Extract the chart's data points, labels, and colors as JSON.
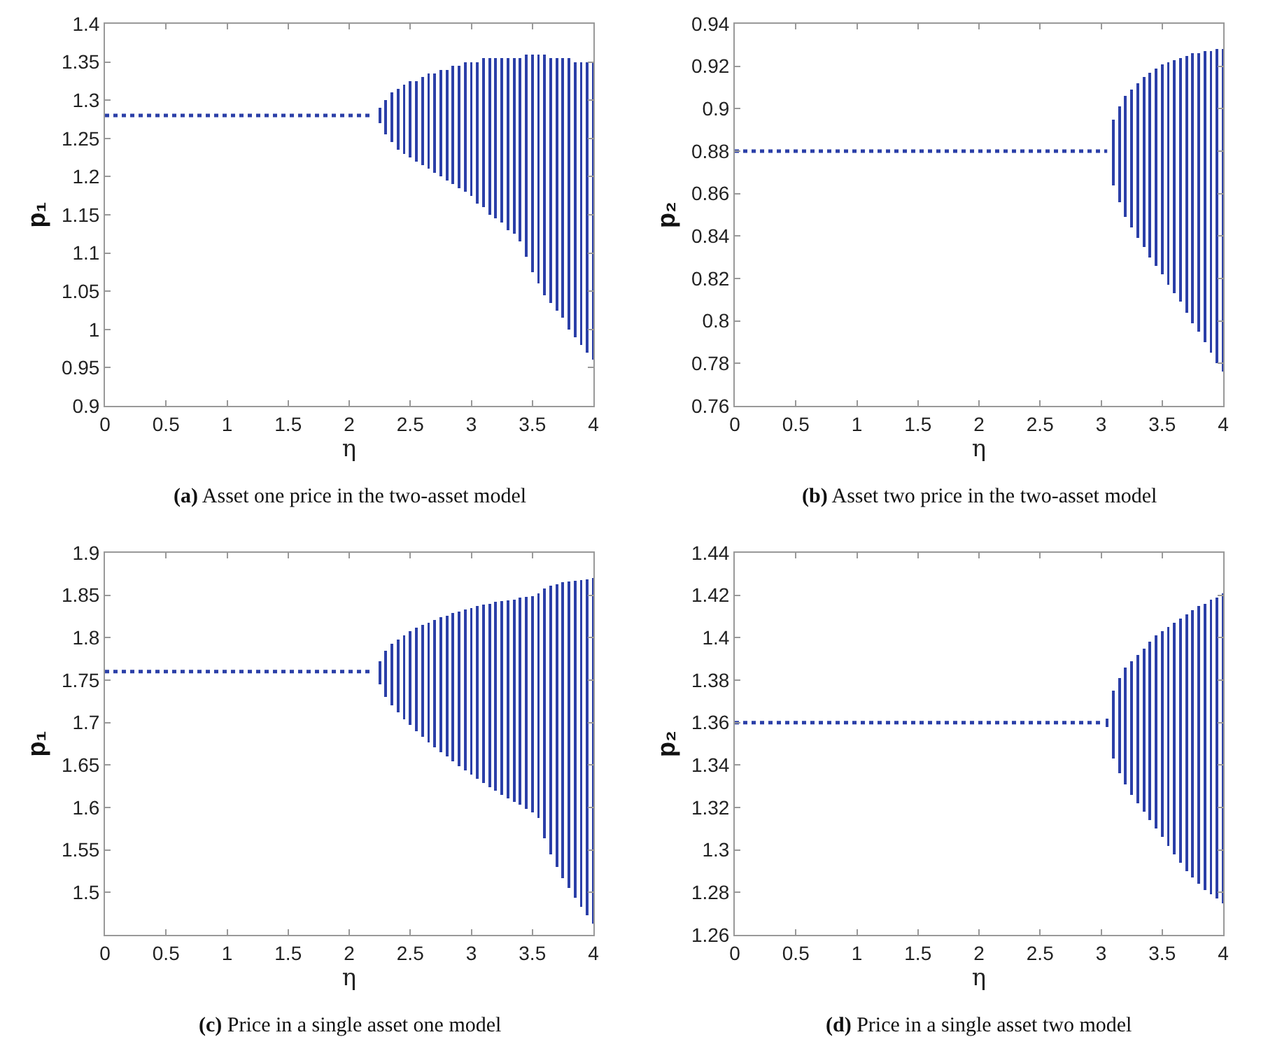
{
  "chart_data": [
    {
      "type": "bar",
      "title": "(a) Asset one price in the two-asset model",
      "xlabel": "η",
      "ylabel": "p₁",
      "xlim": [
        0,
        4
      ],
      "xticks": [
        0,
        0.5,
        1,
        1.5,
        2,
        2.5,
        3,
        3.5,
        4
      ],
      "ylim": [
        0.9,
        1.4
      ],
      "yticks": [
        0.9,
        0.95,
        1,
        1.05,
        1.1,
        1.15,
        1.2,
        1.25,
        1.3,
        1.35,
        1.4
      ],
      "grid": false,
      "legend": false,
      "series": [
        {
          "type": "line",
          "line_style": "dotted",
          "color": "#2b3fa8",
          "x": [
            0,
            2.2
          ],
          "values": [
            1.28,
            1.28
          ]
        },
        {
          "color": "#2b3fa8",
          "x": [
            2.25,
            2.3,
            2.35,
            2.4,
            2.45,
            2.5,
            2.55,
            2.6,
            2.65,
            2.7,
            2.75,
            2.8,
            2.85,
            2.9,
            2.95,
            3.0,
            3.05,
            3.1,
            3.15,
            3.2,
            3.25,
            3.3,
            3.35,
            3.4,
            3.45,
            3.5,
            3.55,
            3.6,
            3.65,
            3.7,
            3.75,
            3.8,
            3.85,
            3.9,
            3.95,
            4.0
          ],
          "base": [
            1.27,
            1.255,
            1.245,
            1.235,
            1.23,
            1.225,
            1.22,
            1.215,
            1.21,
            1.205,
            1.2,
            1.195,
            1.19,
            1.185,
            1.18,
            1.175,
            1.165,
            1.16,
            1.15,
            1.145,
            1.14,
            1.13,
            1.125,
            1.115,
            1.095,
            1.075,
            1.06,
            1.045,
            1.035,
            1.025,
            1.015,
            1.0,
            0.99,
            0.98,
            0.97,
            0.96
          ],
          "values": [
            0.02,
            0.045,
            0.065,
            0.08,
            0.09,
            0.1,
            0.105,
            0.115,
            0.125,
            0.13,
            0.14,
            0.145,
            0.155,
            0.16,
            0.17,
            0.175,
            0.185,
            0.195,
            0.205,
            0.21,
            0.215,
            0.225,
            0.23,
            0.24,
            0.265,
            0.285,
            0.3,
            0.315,
            0.32,
            0.33,
            0.34,
            0.355,
            0.36,
            0.37,
            0.38,
            0.39
          ]
        }
      ]
    },
    {
      "type": "bar",
      "title": "(b) Asset two price in the two-asset model",
      "xlabel": "η",
      "ylabel": "p₂",
      "xlim": [
        0,
        4
      ],
      "xticks": [
        0,
        0.5,
        1,
        1.5,
        2,
        2.5,
        3,
        3.5,
        4
      ],
      "ylim": [
        0.76,
        0.94
      ],
      "yticks": [
        0.76,
        0.78,
        0.8,
        0.82,
        0.84,
        0.86,
        0.88,
        0.9,
        0.92,
        0.94
      ],
      "grid": false,
      "legend": false,
      "series": [
        {
          "type": "line",
          "line_style": "dotted",
          "color": "#2b3fa8",
          "x": [
            0,
            3.05
          ],
          "values": [
            0.88,
            0.88
          ]
        },
        {
          "color": "#2b3fa8",
          "x": [
            3.1,
            3.15,
            3.2,
            3.25,
            3.3,
            3.35,
            3.4,
            3.45,
            3.5,
            3.55,
            3.6,
            3.65,
            3.7,
            3.75,
            3.8,
            3.85,
            3.9,
            3.95,
            4.0
          ],
          "base": [
            0.864,
            0.856,
            0.849,
            0.844,
            0.839,
            0.835,
            0.83,
            0.826,
            0.822,
            0.817,
            0.813,
            0.809,
            0.804,
            0.799,
            0.795,
            0.79,
            0.785,
            0.78,
            0.776
          ],
          "values": [
            0.031,
            0.045,
            0.057,
            0.065,
            0.073,
            0.08,
            0.087,
            0.093,
            0.099,
            0.105,
            0.11,
            0.115,
            0.121,
            0.127,
            0.131,
            0.137,
            0.142,
            0.148,
            0.152
          ]
        }
      ]
    },
    {
      "type": "bar",
      "title": "(c) Price in a single asset one model",
      "xlabel": "η",
      "ylabel": "p₁",
      "xlim": [
        0,
        4
      ],
      "xticks": [
        0,
        0.5,
        1,
        1.5,
        2,
        2.5,
        3,
        3.5,
        4
      ],
      "ylim": [
        1.45,
        1.9
      ],
      "yticks": [
        1.5,
        1.55,
        1.6,
        1.65,
        1.7,
        1.75,
        1.8,
        1.85,
        1.9
      ],
      "grid": false,
      "legend": false,
      "series": [
        {
          "type": "line",
          "line_style": "dotted",
          "color": "#2b3fa8",
          "x": [
            0,
            2.2
          ],
          "values": [
            1.76,
            1.76
          ]
        },
        {
          "color": "#2b3fa8",
          "x": [
            2.25,
            2.3,
            2.35,
            2.4,
            2.45,
            2.5,
            2.55,
            2.6,
            2.65,
            2.7,
            2.75,
            2.8,
            2.85,
            2.9,
            2.95,
            3.0,
            3.05,
            3.1,
            3.15,
            3.2,
            3.25,
            3.3,
            3.35,
            3.4,
            3.45,
            3.5,
            3.55,
            3.6,
            3.65,
            3.7,
            3.75,
            3.8,
            3.85,
            3.9,
            3.95,
            4.0
          ],
          "base": [
            1.745,
            1.73,
            1.72,
            1.712,
            1.704,
            1.697,
            1.69,
            1.683,
            1.677,
            1.671,
            1.665,
            1.66,
            1.654,
            1.649,
            1.644,
            1.639,
            1.634,
            1.629,
            1.624,
            1.62,
            1.615,
            1.611,
            1.607,
            1.603,
            1.598,
            1.594,
            1.588,
            1.564,
            1.545,
            1.53,
            1.517,
            1.505,
            1.494,
            1.483,
            1.473,
            1.463
          ],
          "values": [
            0.027,
            0.055,
            0.073,
            0.086,
            0.099,
            0.111,
            0.122,
            0.132,
            0.141,
            0.15,
            0.159,
            0.166,
            0.175,
            0.182,
            0.189,
            0.196,
            0.203,
            0.21,
            0.216,
            0.222,
            0.228,
            0.233,
            0.238,
            0.244,
            0.25,
            0.255,
            0.264,
            0.294,
            0.316,
            0.333,
            0.348,
            0.361,
            0.373,
            0.385,
            0.396,
            0.407
          ]
        }
      ]
    },
    {
      "type": "bar",
      "title": "(d) Price in a single asset two model",
      "xlabel": "η",
      "ylabel": "p₂",
      "xlim": [
        0,
        4
      ],
      "xticks": [
        0,
        0.5,
        1,
        1.5,
        2,
        2.5,
        3,
        3.5,
        4
      ],
      "ylim": [
        1.26,
        1.44
      ],
      "yticks": [
        1.26,
        1.28,
        1.3,
        1.32,
        1.34,
        1.36,
        1.38,
        1.4,
        1.42,
        1.44
      ],
      "grid": false,
      "legend": false,
      "series": [
        {
          "type": "line",
          "line_style": "dotted",
          "color": "#2b3fa8",
          "x": [
            0,
            3.0
          ],
          "values": [
            1.36,
            1.36
          ]
        },
        {
          "color": "#2b3fa8",
          "x": [
            3.05,
            3.1,
            3.15,
            3.2,
            3.25,
            3.3,
            3.35,
            3.4,
            3.45,
            3.5,
            3.55,
            3.6,
            3.65,
            3.7,
            3.75,
            3.8,
            3.85,
            3.9,
            3.95,
            4.0
          ],
          "base": [
            1.358,
            1.343,
            1.336,
            1.331,
            1.326,
            1.322,
            1.318,
            1.314,
            1.31,
            1.306,
            1.302,
            1.298,
            1.294,
            1.29,
            1.287,
            1.284,
            1.281,
            1.279,
            1.277,
            1.275
          ],
          "values": [
            0.004,
            0.032,
            0.045,
            0.055,
            0.063,
            0.07,
            0.077,
            0.084,
            0.091,
            0.097,
            0.103,
            0.109,
            0.115,
            0.121,
            0.126,
            0.131,
            0.135,
            0.139,
            0.142,
            0.146
          ]
        }
      ]
    }
  ]
}
